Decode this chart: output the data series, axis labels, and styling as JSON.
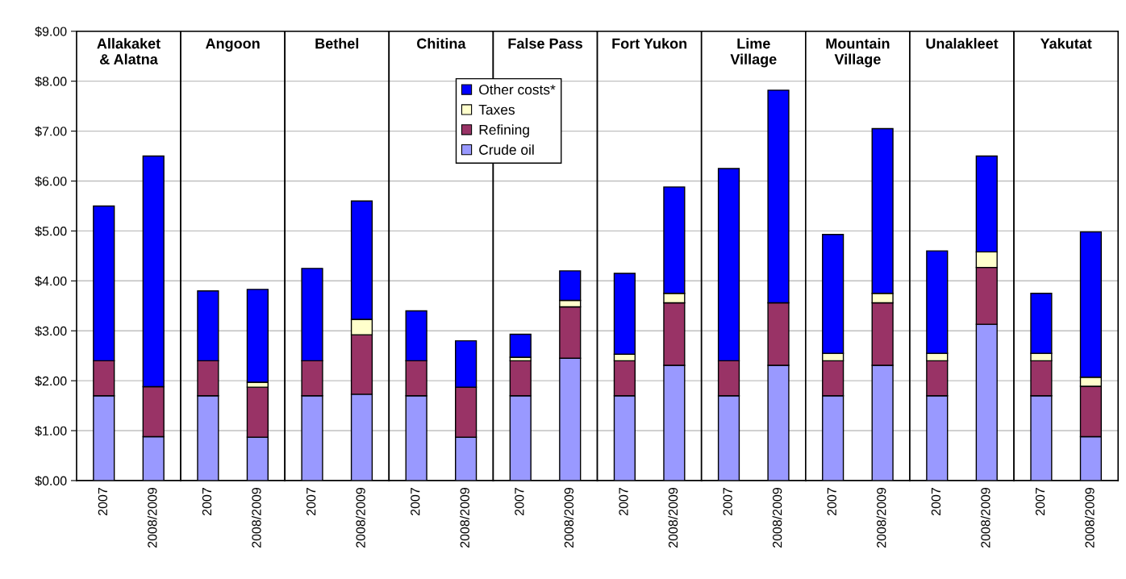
{
  "chart_data": [
    {
      "type": "bar",
      "stacked": true,
      "title": "Allakaket\n& Alatna",
      "categories": [
        "2007",
        "2008/2009"
      ],
      "ylim": [
        0,
        9
      ],
      "yticks": [
        {
          "value": 0,
          "label": "$0.00"
        },
        {
          "value": 1,
          "label": "$1.00"
        },
        {
          "value": 2,
          "label": "$2.00"
        },
        {
          "value": 3,
          "label": "$3.00"
        },
        {
          "value": 4,
          "label": "$4.00"
        },
        {
          "value": 5,
          "label": "$5.00"
        },
        {
          "value": 6,
          "label": "$6.00"
        },
        {
          "value": 7,
          "label": "$7.00"
        },
        {
          "value": 8,
          "label": "$8.00"
        },
        {
          "value": 9,
          "label": "$9.00"
        }
      ],
      "grid": "y",
      "series": [
        {
          "color": "#9999ff",
          "values": [
            1.7,
            0.88
          ]
        },
        {
          "color": "#993366",
          "values": [
            0.7,
            1.0
          ]
        },
        {
          "color": "#ffffcc",
          "values": [
            0,
            0
          ]
        },
        {
          "color": "#0000ff",
          "values": [
            3.1,
            4.62
          ]
        }
      ]
    },
    {
      "type": "bar",
      "stacked": true,
      "title": "Angoon",
      "categories": [
        "2007",
        "2008/2009"
      ],
      "ylim": [
        0,
        9
      ],
      "yticks": [
        0,
        1,
        2,
        3,
        4,
        5,
        6,
        7,
        8,
        9
      ],
      "tick_labels": "x",
      "grid": "y",
      "series": [
        {
          "color": "#9999ff",
          "values": [
            1.7,
            0.87
          ]
        },
        {
          "color": "#993366",
          "values": [
            0.7,
            1.0
          ]
        },
        {
          "color": "#ffffcc",
          "values": [
            0,
            0.1
          ]
        },
        {
          "color": "#0000ff",
          "values": [
            1.4,
            1.86
          ]
        }
      ]
    },
    {
      "type": "bar",
      "stacked": true,
      "title": "Bethel",
      "categories": [
        "2007",
        "2008/2009"
      ],
      "ylim": [
        0,
        9
      ],
      "yticks": [
        0,
        1,
        2,
        3,
        4,
        5,
        6,
        7,
        8,
        9
      ],
      "tick_labels": "x",
      "grid": "y",
      "series": [
        {
          "color": "#9999ff",
          "values": [
            1.7,
            1.73
          ]
        },
        {
          "color": "#993366",
          "values": [
            0.7,
            1.19
          ]
        },
        {
          "color": "#ffffcc",
          "values": [
            0,
            0.31
          ]
        },
        {
          "color": "#0000ff",
          "values": [
            1.85,
            2.37
          ]
        }
      ]
    },
    {
      "type": "bar",
      "stacked": true,
      "title": "Chitina",
      "categories": [
        "2007",
        "2008/2009"
      ],
      "ylim": [
        0,
        9
      ],
      "yticks": [
        0,
        1,
        2,
        3,
        4,
        5,
        6,
        7,
        8,
        9
      ],
      "tick_labels": "x",
      "grid": "y",
      "legend": "top right",
      "series": [
        {
          "name": "Crude oil",
          "color": "#9999ff",
          "values": [
            1.7,
            0.87
          ]
        },
        {
          "name": "Refining",
          "color": "#993366",
          "values": [
            0.7,
            1.0
          ]
        },
        {
          "name": "Taxes",
          "color": "#ffffcc",
          "values": [
            0,
            0
          ]
        },
        {
          "name": "Other costs*",
          "color": "#0000ff",
          "values": [
            1.0,
            0.93
          ]
        }
      ]
    },
    {
      "type": "bar",
      "stacked": true,
      "title": "False Pass",
      "categories": [
        "2007",
        "2008/2009"
      ],
      "ylim": [
        0,
        9
      ],
      "yticks": [
        0,
        1,
        2,
        3,
        4,
        5,
        6,
        7,
        8,
        9
      ],
      "tick_labels": "x",
      "grid": "y",
      "series": [
        {
          "color": "#9999ff",
          "values": [
            1.7,
            2.45
          ]
        },
        {
          "color": "#993366",
          "values": [
            0.7,
            1.03
          ]
        },
        {
          "color": "#ffffcc",
          "values": [
            0.07,
            0.13
          ]
        },
        {
          "color": "#0000ff",
          "values": [
            0.46,
            0.59
          ]
        }
      ]
    },
    {
      "type": "bar",
      "stacked": true,
      "title": "Fort Yukon",
      "categories": [
        "2007",
        "2008/2009"
      ],
      "ylim": [
        0,
        9
      ],
      "yticks": [
        0,
        1,
        2,
        3,
        4,
        5,
        6,
        7,
        8,
        9
      ],
      "tick_labels": "x",
      "grid": "y",
      "series": [
        {
          "color": "#9999ff",
          "values": [
            1.7,
            2.31
          ]
        },
        {
          "color": "#993366",
          "values": [
            0.7,
            1.25
          ]
        },
        {
          "color": "#ffffcc",
          "values": [
            0.13,
            0.19
          ]
        },
        {
          "color": "#0000ff",
          "values": [
            1.62,
            2.13
          ]
        }
      ]
    },
    {
      "type": "bar",
      "stacked": true,
      "title": "Lime\nVillage",
      "categories": [
        "2007",
        "2008/2009"
      ],
      "ylim": [
        0,
        9
      ],
      "yticks": [
        0,
        1,
        2,
        3,
        4,
        5,
        6,
        7,
        8,
        9
      ],
      "tick_labels": "x",
      "grid": "y",
      "series": [
        {
          "color": "#9999ff",
          "values": [
            1.7,
            2.31
          ]
        },
        {
          "color": "#993366",
          "values": [
            0.7,
            1.25
          ]
        },
        {
          "color": "#ffffcc",
          "values": [
            0,
            0
          ]
        },
        {
          "color": "#0000ff",
          "values": [
            3.85,
            4.26
          ]
        }
      ]
    },
    {
      "type": "bar",
      "stacked": true,
      "title": "Mountain\nVillage",
      "categories": [
        "2007",
        "2008/2009"
      ],
      "ylim": [
        0,
        9
      ],
      "yticks": [
        0,
        1,
        2,
        3,
        4,
        5,
        6,
        7,
        8,
        9
      ],
      "tick_labels": "x",
      "grid": "y",
      "series": [
        {
          "color": "#9999ff",
          "values": [
            1.7,
            2.31
          ]
        },
        {
          "color": "#993366",
          "values": [
            0.7,
            1.25
          ]
        },
        {
          "color": "#ffffcc",
          "values": [
            0.15,
            0.19
          ]
        },
        {
          "color": "#0000ff",
          "values": [
            2.38,
            3.3
          ]
        }
      ]
    },
    {
      "type": "bar",
      "stacked": true,
      "title": "Unalakleet",
      "categories": [
        "2007",
        "2008/2009"
      ],
      "ylim": [
        0,
        9
      ],
      "yticks": [
        0,
        1,
        2,
        3,
        4,
        5,
        6,
        7,
        8,
        9
      ],
      "tick_labels": "x",
      "grid": "y",
      "series": [
        {
          "color": "#9999ff",
          "values": [
            1.7,
            3.13
          ]
        },
        {
          "color": "#993366",
          "values": [
            0.7,
            1.14
          ]
        },
        {
          "color": "#ffffcc",
          "values": [
            0.15,
            0.31
          ]
        },
        {
          "color": "#0000ff",
          "values": [
            2.05,
            1.92
          ]
        }
      ]
    },
    {
      "type": "bar",
      "stacked": true,
      "title": "Yakutat",
      "categories": [
        "2007",
        "2008/2009"
      ],
      "ylim": [
        0,
        9
      ],
      "yticks": [
        0,
        1,
        2,
        3,
        4,
        5,
        6,
        7,
        8,
        9
      ],
      "tick_labels": "x",
      "grid": "y",
      "series": [
        {
          "color": "#9999ff",
          "values": [
            1.7,
            0.88
          ]
        },
        {
          "color": "#993366",
          "values": [
            0.7,
            1.01
          ]
        },
        {
          "color": "#ffffcc",
          "values": [
            0.15,
            0.18
          ]
        },
        {
          "color": "#0000ff",
          "values": [
            1.2,
            2.91
          ]
        }
      ]
    }
  ]
}
